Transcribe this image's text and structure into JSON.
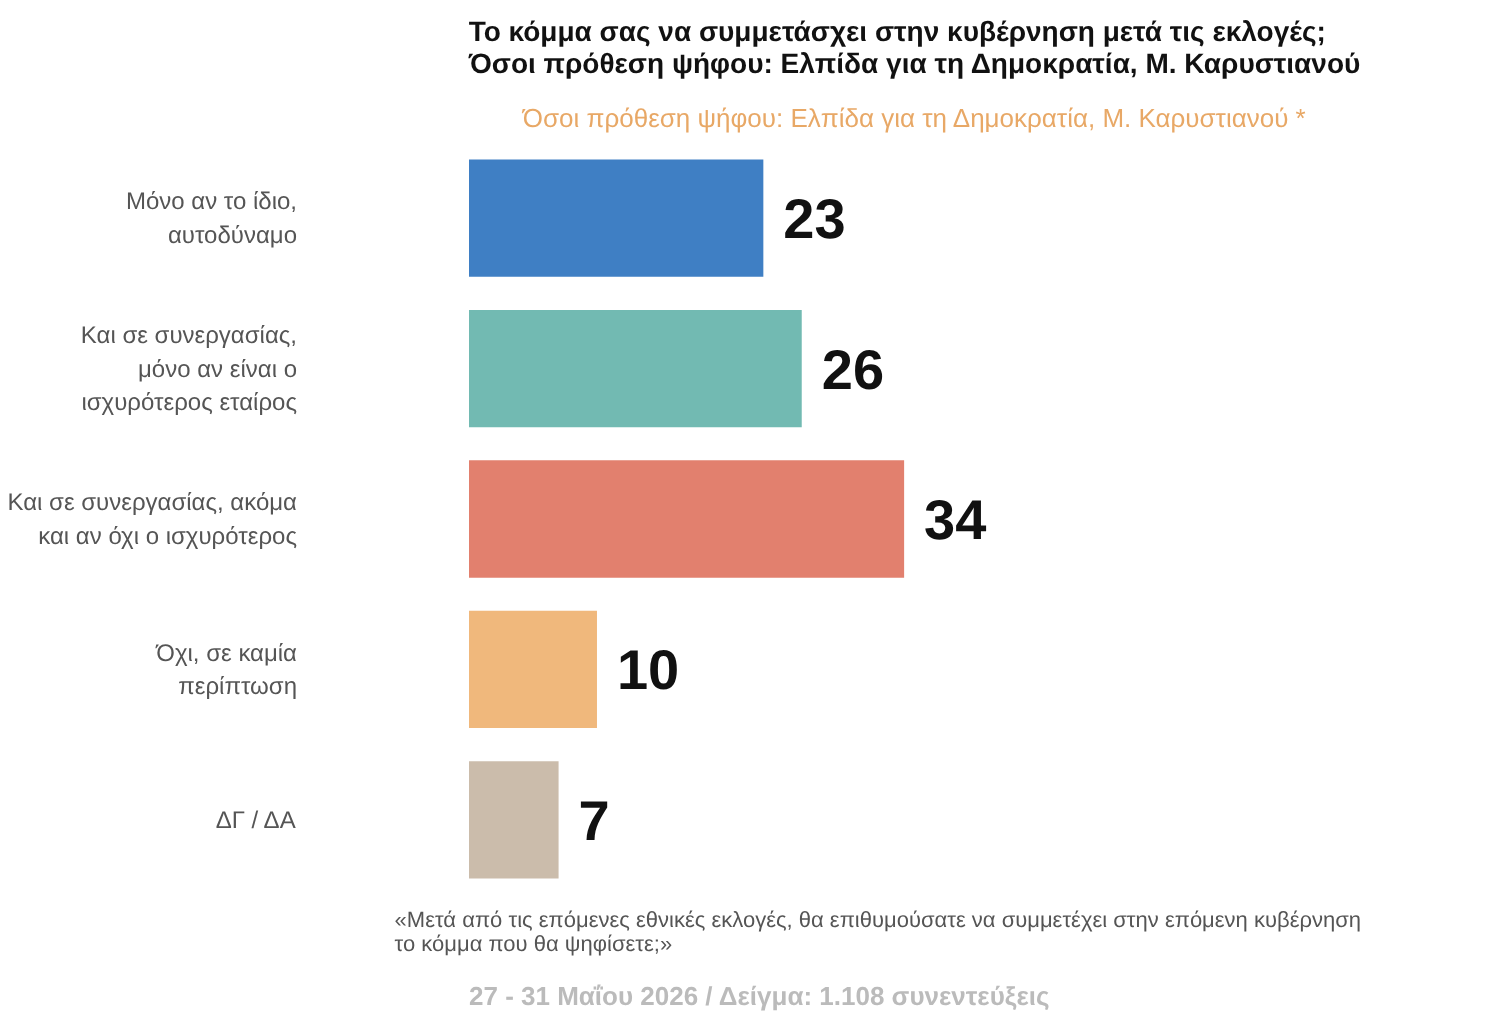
{
  "chart_data": {
    "type": "bar",
    "orientation": "horizontal",
    "data_labels": true,
    "title": "Το κόμμα σας να συμμετάσχει στην κυβέρνηση μετά τις εκλογές;\nΌσοι πρόθεση ψήφου: Ελπίδα για τη Δημοκρατία, Μ. Καρυστιανού",
    "subtitle": "Όσοι πρόθεση ψήφου: Ελπίδα για τη Δημοκρατία, Μ. Καρυστιανού *",
    "categories": [
      "Μόνο αν το ίδιο,\nαυτοδύναμο",
      "Και σε συνεργασίας,\nμόνο αν είναι ο\nισχυρότερος εταίρος",
      "Και σε συνεργασίας, ακόμα\nκαι αν όχι ο ισχυρότερος",
      "Όχι, σε καμία\nπερίπτωση",
      "ΔΓ / ΔΑ"
    ],
    "values": [
      23,
      26,
      34,
      10,
      7
    ],
    "colors": [
      "#3f7fc4",
      "#72bab2",
      "#e2806e",
      "#f0b87c",
      "#cbbcab"
    ],
    "annotations": [
      "«Μετά από τις επόμενες εθνικές εκλογές, θα επιθυμούσατε να συμμετέχει στην επόμενη κυβέρνηση\nτο κόμμα που θα ψηφίσετε;»",
      "27 - 31 Μαΐου 2026  /  Δείγμα:  1.108 συνεντεύξεις"
    ]
  }
}
